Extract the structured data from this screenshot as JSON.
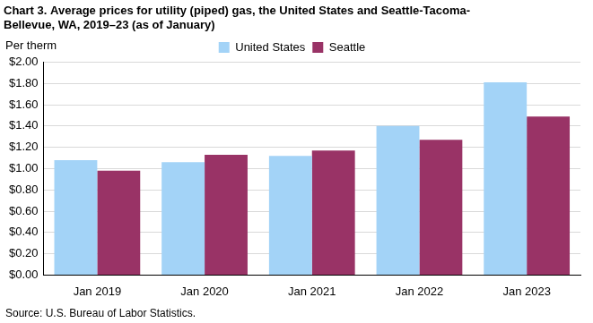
{
  "chart_data": {
    "type": "bar",
    "title": [
      "Chart 3. Average prices for utility (piped) gas, the United States and Seattle-Tacoma-",
      "Bellevue, WA, 2019–23 (as of January)"
    ],
    "ylabel": "Per therm",
    "annotations": [
      "Source: U.S. Bureau of Labor Statistics."
    ],
    "categories": [
      "Jan 2019",
      "Jan 2020",
      "Jan 2021",
      "Jan 2022",
      "Jan 2023"
    ],
    "series": [
      {
        "name": "United States",
        "color": "#a3d3f7",
        "values": [
          1.08,
          1.06,
          1.12,
          1.4,
          1.81
        ]
      },
      {
        "name": "Seattle",
        "color": "#993366",
        "values": [
          0.98,
          1.13,
          1.17,
          1.27,
          1.49
        ]
      }
    ],
    "ylim": [
      0,
      2
    ],
    "yticks": [
      {
        "value": 0,
        "label": "$0.00"
      },
      {
        "value": 0.2,
        "label": "$0.20"
      },
      {
        "value": 0.4,
        "label": "$0.40"
      },
      {
        "value": 0.6,
        "label": "$0.60"
      },
      {
        "value": 0.8,
        "label": "$0.80"
      },
      {
        "value": 1,
        "label": "$1.00"
      },
      {
        "value": 1.2,
        "label": "$1.20"
      },
      {
        "value": 1.4,
        "label": "$1.40"
      },
      {
        "value": 1.6,
        "label": "$1.60"
      },
      {
        "value": 1.8,
        "label": "$1.80"
      },
      {
        "value": 2,
        "label": "$2.00"
      }
    ],
    "grid": true,
    "legend": "top"
  }
}
